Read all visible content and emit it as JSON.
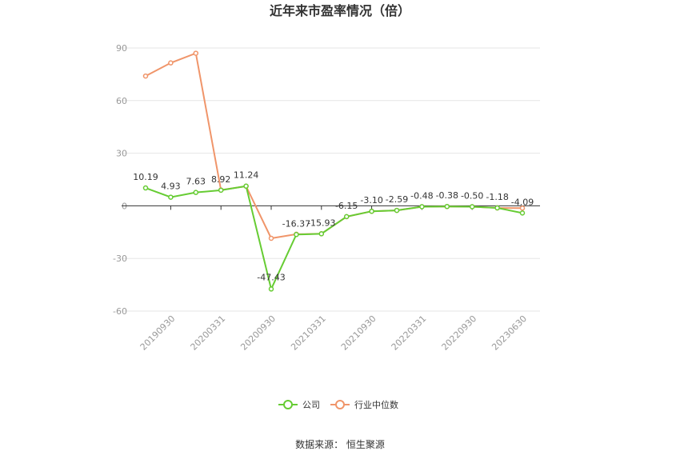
{
  "chart_data": {
    "type": "line",
    "title": "近年来市盈率情况（倍）",
    "xlabel": "",
    "ylabel": "",
    "ylim": [
      -60,
      90
    ],
    "yticks": [
      90,
      60,
      30,
      0,
      -30,
      -60
    ],
    "grid": true,
    "legend_position": "bottom",
    "x_tick_labels": [
      "20190930",
      "20200331",
      "20200930",
      "20210331",
      "20210930",
      "20220331",
      "20220930",
      "20230630"
    ],
    "series": [
      {
        "name": "公司",
        "color": "#66cc33",
        "values": [
          10.19,
          4.93,
          7.63,
          8.92,
          11.24,
          -47.43,
          -16.37,
          -15.93,
          -6.15,
          -3.1,
          -2.59,
          -0.48,
          -0.38,
          -0.5,
          -1.18,
          -4.09
        ],
        "labels": [
          "10.19",
          "4.93",
          "7.63",
          "8.92",
          "11.24",
          "-47.43",
          "-16.37",
          "-15.93",
          "-6.15",
          "-3.10",
          "-2.59",
          "-0.48",
          "-0.38",
          "-0.50",
          "-1.18",
          "-4.09"
        ]
      },
      {
        "name": "行业中位数",
        "color": "#f0956a",
        "values": [
          74,
          81.5,
          87,
          9,
          11.2,
          -18.5,
          -16.2,
          -15.9,
          -6.2,
          -3.1,
          -2.6,
          -0.5,
          -0.4,
          -0.5,
          -1.2,
          -1.3
        ]
      }
    ]
  },
  "source_text": "数据来源：  恒生聚源"
}
